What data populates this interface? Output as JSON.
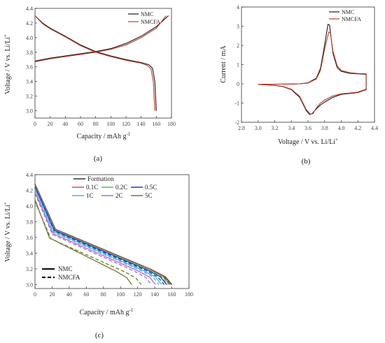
{
  "chart_data": [
    {
      "type": "line",
      "panel": "(a)",
      "xlabel": "Capacity / mAh g",
      "xlabel_sup": "-1",
      "ylabel": "Voltage / V vs. Li/Li",
      "ylabel_sup": "+",
      "xlim": [
        0,
        180
      ],
      "ylim": [
        2.9,
        4.4
      ],
      "xticks": [
        0,
        20,
        40,
        60,
        80,
        100,
        120,
        140,
        160,
        180
      ],
      "yticks": [
        3.0,
        3.2,
        3.4,
        3.6,
        3.8,
        4.0,
        4.2,
        4.4
      ],
      "legend_position": "top-right",
      "colors": {
        "NMC": "#1a1a1a",
        "NMCFA": "#c0392b"
      },
      "series": [
        {
          "name": "NMC",
          "segments": [
            [
              [
                0,
                3.68
              ],
              [
                10,
                3.7
              ],
              [
                20,
                3.72
              ],
              [
                40,
                3.75
              ],
              [
                60,
                3.78
              ],
              [
                80,
                3.81
              ],
              [
                100,
                3.85
              ],
              [
                120,
                3.92
              ],
              [
                140,
                4.02
              ],
              [
                160,
                4.15
              ],
              [
                176,
                4.3
              ]
            ],
            [
              [
                0,
                4.3
              ],
              [
                10,
                4.2
              ],
              [
                20,
                4.13
              ],
              [
                40,
                4.02
              ],
              [
                60,
                3.9
              ],
              [
                80,
                3.81
              ],
              [
                100,
                3.75
              ],
              [
                120,
                3.7
              ],
              [
                140,
                3.66
              ],
              [
                150,
                3.63
              ],
              [
                155,
                3.58
              ],
              [
                158,
                3.4
              ],
              [
                160,
                3.0
              ]
            ]
          ]
        },
        {
          "name": "NMCFA",
          "segments": [
            [
              [
                0,
                3.67
              ],
              [
                10,
                3.69
              ],
              [
                20,
                3.71
              ],
              [
                40,
                3.74
              ],
              [
                60,
                3.77
              ],
              [
                80,
                3.8
              ],
              [
                100,
                3.84
              ],
              [
                120,
                3.9
              ],
              [
                140,
                4.0
              ],
              [
                160,
                4.13
              ],
              [
                173,
                4.3
              ]
            ],
            [
              [
                0,
                4.3
              ],
              [
                10,
                4.19
              ],
              [
                20,
                4.12
              ],
              [
                40,
                4.01
              ],
              [
                60,
                3.89
              ],
              [
                80,
                3.8
              ],
              [
                100,
                3.74
              ],
              [
                120,
                3.69
              ],
              [
                140,
                3.65
              ],
              [
                148,
                3.62
              ],
              [
                153,
                3.57
              ],
              [
                156,
                3.4
              ],
              [
                158,
                3.0
              ]
            ]
          ]
        }
      ]
    },
    {
      "type": "line",
      "panel": "(b)",
      "xlabel": "Voltage / V vs. Li/Li",
      "xlabel_sup": "+",
      "ylabel": "Current / mA",
      "xlim": [
        2.8,
        4.4
      ],
      "ylim": [
        -2,
        4
      ],
      "xticks": [
        2.8,
        3.0,
        3.2,
        3.4,
        3.6,
        3.8,
        4.0,
        4.2,
        4.4
      ],
      "yticks": [
        -2,
        -1,
        0,
        1,
        2,
        3,
        4
      ],
      "legend_position": "top-right",
      "colors": {
        "NMC": "#1a1a1a",
        "NMCFA": "#c0392b"
      },
      "series": [
        {
          "name": "NMC",
          "segments": [
            [
              [
                3.0,
                -0.02
              ],
              [
                3.2,
                -0.02
              ],
              [
                3.4,
                -0.01
              ],
              [
                3.5,
                0.0
              ],
              [
                3.6,
                0.05
              ],
              [
                3.7,
                0.3
              ],
              [
                3.75,
                0.8
              ],
              [
                3.8,
                2.0
              ],
              [
                3.84,
                3.1
              ],
              [
                3.86,
                3.05
              ],
              [
                3.9,
                1.6
              ],
              [
                3.95,
                0.85
              ],
              [
                4.0,
                0.65
              ],
              [
                4.1,
                0.55
              ],
              [
                4.2,
                0.52
              ],
              [
                4.3,
                0.5
              ],
              [
                4.3,
                -0.3
              ],
              [
                4.2,
                -0.45
              ],
              [
                4.1,
                -0.5
              ],
              [
                4.0,
                -0.55
              ],
              [
                3.9,
                -0.7
              ],
              [
                3.8,
                -0.95
              ],
              [
                3.75,
                -1.1
              ],
              [
                3.7,
                -1.3
              ],
              [
                3.65,
                -1.55
              ],
              [
                3.62,
                -1.6
              ],
              [
                3.58,
                -1.4
              ],
              [
                3.5,
                -0.7
              ],
              [
                3.4,
                -0.3
              ],
              [
                3.3,
                -0.15
              ],
              [
                3.2,
                -0.08
              ],
              [
                3.0,
                -0.03
              ]
            ]
          ]
        },
        {
          "name": "NMCFA",
          "segments": [
            [
              [
                3.0,
                -0.02
              ],
              [
                3.2,
                -0.02
              ],
              [
                3.4,
                -0.01
              ],
              [
                3.5,
                0.0
              ],
              [
                3.6,
                0.04
              ],
              [
                3.7,
                0.25
              ],
              [
                3.75,
                0.7
              ],
              [
                3.8,
                1.8
              ],
              [
                3.85,
                2.7
              ],
              [
                3.87,
                2.65
              ],
              [
                3.9,
                1.7
              ],
              [
                3.95,
                0.95
              ],
              [
                4.0,
                0.7
              ],
              [
                4.1,
                0.58
              ],
              [
                4.2,
                0.54
              ],
              [
                4.3,
                0.52
              ],
              [
                4.3,
                -0.28
              ],
              [
                4.2,
                -0.43
              ],
              [
                4.1,
                -0.48
              ],
              [
                4.0,
                -0.52
              ],
              [
                3.9,
                -0.62
              ],
              [
                3.8,
                -0.85
              ],
              [
                3.75,
                -1.0
              ],
              [
                3.7,
                -1.25
              ],
              [
                3.66,
                -1.55
              ],
              [
                3.63,
                -1.58
              ],
              [
                3.58,
                -1.35
              ],
              [
                3.5,
                -0.65
              ],
              [
                3.4,
                -0.28
              ],
              [
                3.3,
                -0.14
              ],
              [
                3.2,
                -0.07
              ],
              [
                3.0,
                -0.03
              ]
            ]
          ]
        }
      ]
    },
    {
      "type": "line",
      "panel": "(c)",
      "xlabel": "Capacity / mAh g",
      "xlabel_sup": "-1",
      "ylabel": "Voltage / V vs. Li/Li",
      "ylabel_sup": "+",
      "xlim": [
        0,
        180
      ],
      "ylim": [
        2.95,
        4.4
      ],
      "xticks": [
        0,
        20,
        40,
        60,
        80,
        100,
        120,
        140,
        160,
        180
      ],
      "yticks": [
        3.0,
        3.2,
        3.4,
        3.6,
        3.8,
        4.0,
        4.2,
        4.4
      ],
      "legend_rates": [
        "Formation",
        "0.1C",
        "0.2C",
        "0.5C",
        "1C",
        "2C",
        "5C"
      ],
      "legend_styles": [
        {
          "label": "NMC",
          "dash": "solid"
        },
        {
          "label": "NMCFA",
          "dash": "dashed"
        }
      ],
      "series": [
        {
          "name": "Formation",
          "color": "#333333",
          "dash": "solid",
          "start": 4.28,
          "q": 160
        },
        {
          "name": "Formation",
          "color": "#333333",
          "dash": "dashed",
          "start": 4.27,
          "q": 158
        },
        {
          "name": "0.1C",
          "color": "#d9534f",
          "dash": "solid",
          "start": 4.27,
          "q": 159
        },
        {
          "name": "0.1C",
          "color": "#d9534f",
          "dash": "dashed",
          "start": 4.26,
          "q": 157
        },
        {
          "name": "0.2C",
          "color": "#5cb85c",
          "dash": "solid",
          "start": 4.26,
          "q": 157
        },
        {
          "name": "0.2C",
          "color": "#5cb85c",
          "dash": "dashed",
          "start": 4.25,
          "q": 155
        },
        {
          "name": "0.5C",
          "color": "#1f3fbf",
          "dash": "solid",
          "start": 4.25,
          "q": 154
        },
        {
          "name": "0.5C",
          "color": "#1f3fbf",
          "dash": "dashed",
          "start": 4.24,
          "q": 151
        },
        {
          "name": "1C",
          "color": "#46b8da",
          "dash": "solid",
          "start": 4.22,
          "q": 148
        },
        {
          "name": "1C",
          "color": "#46b8da",
          "dash": "dashed",
          "start": 4.21,
          "q": 145
        },
        {
          "name": "2C",
          "color": "#b266e0",
          "dash": "solid",
          "start": 4.18,
          "q": 141
        },
        {
          "name": "2C",
          "color": "#b266e0",
          "dash": "dashed",
          "start": 4.16,
          "q": 136
        },
        {
          "name": "5C",
          "color": "#6b7a2a",
          "dash": "solid",
          "start": 4.08,
          "q": 113
        },
        {
          "name": "5C",
          "color": "#6b7a2a",
          "dash": "dashed",
          "start": 4.06,
          "q": 124
        }
      ]
    }
  ],
  "legend": {
    "nmc": "NMC",
    "nmcfa": "NMCFA"
  },
  "captions": {
    "a": "(a)",
    "b": "(b)",
    "c": "(c)"
  }
}
